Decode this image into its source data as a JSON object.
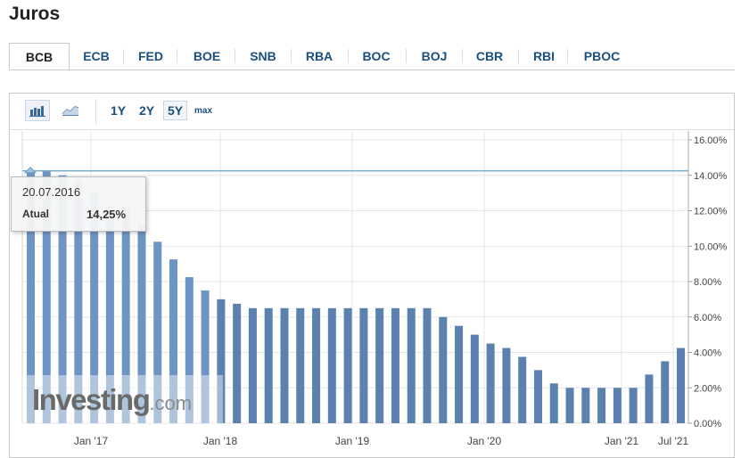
{
  "page": {
    "title": "Juros"
  },
  "tabs": [
    {
      "label": "BCB",
      "active": true
    },
    {
      "label": "ECB"
    },
    {
      "label": "FED"
    },
    {
      "label": "BOE"
    },
    {
      "label": "SNB"
    },
    {
      "label": "RBA"
    },
    {
      "label": "BOC"
    },
    {
      "label": "BOJ"
    },
    {
      "label": "CBR"
    },
    {
      "label": "RBI"
    },
    {
      "label": "PBOC"
    }
  ],
  "toolbar": {
    "bar_chart_icon": "bar-chart-icon",
    "line_chart_icon": "line-chart-icon",
    "ranges": [
      "1Y",
      "2Y",
      "5Y",
      "max"
    ],
    "active_range": "5Y"
  },
  "tooltip": {
    "date": "20.07.2016",
    "label": "Atual",
    "value": "14,25%"
  },
  "watermark": {
    "brand": "Investing",
    "suffix": ".com"
  },
  "colors": {
    "bar": "#5b82ae",
    "bar_highlight": "#6d95c4",
    "line": "#7ab0d4",
    "grid": "#e5e5e5",
    "tab_text": "#1a4f7e"
  },
  "chart_data": {
    "type": "bar",
    "x_ticks": [
      "Jan '17",
      "Jan '18",
      "Jan '19",
      "Jan '20",
      "Jan '21",
      "Jul '21"
    ],
    "y_ticks": [
      "0.00%",
      "2.00%",
      "4.00%",
      "6.00%",
      "8.00%",
      "10.00%",
      "12.00%",
      "14.00%",
      "16.00%"
    ],
    "ylim": [
      0,
      16
    ],
    "reference_line": 14.25,
    "values": [
      14.25,
      14.25,
      14.0,
      13.75,
      13.0,
      12.25,
      12.25,
      11.25,
      10.25,
      9.25,
      8.25,
      7.5,
      7.0,
      6.75,
      6.5,
      6.5,
      6.5,
      6.5,
      6.5,
      6.5,
      6.5,
      6.5,
      6.5,
      6.5,
      6.5,
      6.5,
      6.0,
      5.5,
      5.0,
      4.5,
      4.25,
      3.75,
      3.0,
      2.25,
      2.0,
      2.0,
      2.0,
      2.0,
      2.0,
      2.75,
      3.5,
      4.25
    ],
    "highlighted_count": 12,
    "grid": true
  }
}
